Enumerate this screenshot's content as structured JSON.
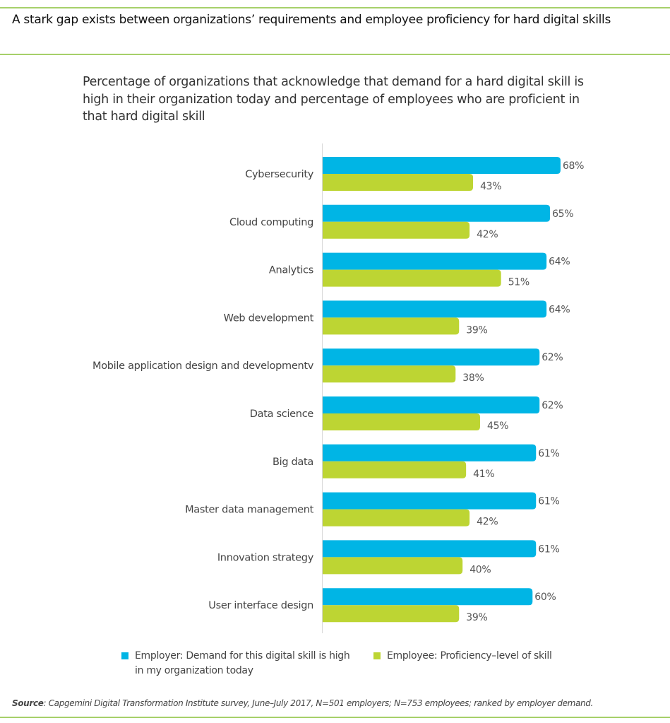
{
  "page": {
    "title": "A stark gap exists between organizations’ requirements and employee proficiency for hard digital skills",
    "source_label": "Source",
    "source_text": ": Capgemini Digital Transformation Institute survey, June–July 2017, N=501 employers; N=753 employees; ranked by employer demand."
  },
  "colors": {
    "employer": "#00b5e5",
    "employee": "#bdd533",
    "rule": "#a6d06a"
  },
  "chart_data": {
    "type": "bar",
    "orientation": "horizontal",
    "title": "Percentage of organizations that acknowledge that demand for a hard digital skill is high in their organization today and percentage of employees who are proficient in that hard digital skill",
    "xlabel": "",
    "ylabel": "",
    "xlim": [
      0,
      100
    ],
    "grid": false,
    "legend_position": "bottom",
    "value_suffix": "%",
    "categories": [
      "Cybersecurity",
      "Cloud computing",
      "Analytics",
      "Web development",
      "Mobile application design and developmentv",
      "Data science",
      "Big data",
      "Master data management",
      "Innovation strategy",
      "User interface design"
    ],
    "series": [
      {
        "key": "employer",
        "name": "Employer: Demand for this digital skill is high in my organization today",
        "values": [
          68,
          65,
          64,
          64,
          62,
          62,
          61,
          61,
          61,
          60
        ]
      },
      {
        "key": "employee",
        "name": "Employee: Proficiency–level of skill",
        "values": [
          43,
          42,
          51,
          39,
          38,
          45,
          41,
          42,
          40,
          39
        ]
      }
    ]
  }
}
